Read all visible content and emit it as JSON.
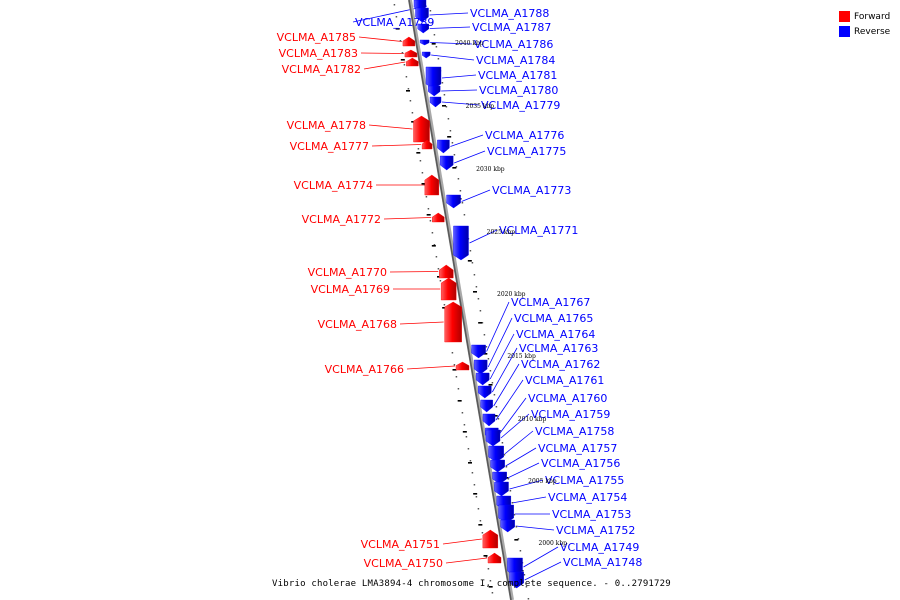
{
  "legend": {
    "forward_label": "Forward",
    "reverse_label": "Reverse",
    "forward_color": "#ff0000",
    "reverse_color": "#0000ff"
  },
  "caption": "Vibrio cholerae LMA3894-4 chromosome I, complete sequence. - 0..2791729",
  "ticks": [
    "2040 kbp",
    "2035 kbp",
    "2030 kbp",
    "2025 kbp",
    "2020 kbp",
    "2015 kbp",
    "2010 kbp",
    "2005 kbp",
    "2000 kbp"
  ],
  "genes": [
    {
      "name": "VCLMA_A1789",
      "strand": "reverse"
    },
    {
      "name": "VCLMA_A1788",
      "strand": "reverse"
    },
    {
      "name": "VCLMA_A1787",
      "strand": "reverse"
    },
    {
      "name": "VCLMA_A1786",
      "strand": "reverse"
    },
    {
      "name": "VCLMA_A1785",
      "strand": "forward"
    },
    {
      "name": "VCLMA_A1784",
      "strand": "reverse"
    },
    {
      "name": "VCLMA_A1783",
      "strand": "forward"
    },
    {
      "name": "VCLMA_A1782",
      "strand": "forward"
    },
    {
      "name": "VCLMA_A1781",
      "strand": "reverse"
    },
    {
      "name": "VCLMA_A1780",
      "strand": "reverse"
    },
    {
      "name": "VCLMA_A1779",
      "strand": "reverse"
    },
    {
      "name": "VCLMA_A1778",
      "strand": "forward"
    },
    {
      "name": "VCLMA_A1777",
      "strand": "forward"
    },
    {
      "name": "VCLMA_A1776",
      "strand": "reverse"
    },
    {
      "name": "VCLMA_A1775",
      "strand": "reverse"
    },
    {
      "name": "VCLMA_A1774",
      "strand": "forward"
    },
    {
      "name": "VCLMA_A1773",
      "strand": "reverse"
    },
    {
      "name": "VCLMA_A1772",
      "strand": "forward"
    },
    {
      "name": "VCLMA_A1771",
      "strand": "reverse"
    },
    {
      "name": "VCLMA_A1770",
      "strand": "forward"
    },
    {
      "name": "VCLMA_A1769",
      "strand": "forward"
    },
    {
      "name": "VCLMA_A1768",
      "strand": "forward"
    },
    {
      "name": "VCLMA_A1767",
      "strand": "reverse"
    },
    {
      "name": "VCLMA_A1766",
      "strand": "forward"
    },
    {
      "name": "VCLMA_A1765",
      "strand": "reverse"
    },
    {
      "name": "VCLMA_A1764",
      "strand": "reverse"
    },
    {
      "name": "VCLMA_A1763",
      "strand": "reverse"
    },
    {
      "name": "VCLMA_A1762",
      "strand": "reverse"
    },
    {
      "name": "VCLMA_A1761",
      "strand": "reverse"
    },
    {
      "name": "VCLMA_A1760",
      "strand": "reverse"
    },
    {
      "name": "VCLMA_A1759",
      "strand": "reverse"
    },
    {
      "name": "VCLMA_A1758",
      "strand": "reverse"
    },
    {
      "name": "VCLMA_A1757",
      "strand": "reverse"
    },
    {
      "name": "VCLMA_A1756",
      "strand": "reverse"
    },
    {
      "name": "VCLMA_A1755",
      "strand": "reverse"
    },
    {
      "name": "VCLMA_A1754",
      "strand": "reverse"
    },
    {
      "name": "VCLMA_A1753",
      "strand": "reverse"
    },
    {
      "name": "VCLMA_A1752",
      "strand": "reverse"
    },
    {
      "name": "VCLMA_A1751",
      "strand": "forward"
    },
    {
      "name": "VCLMA_A1750",
      "strand": "forward"
    },
    {
      "name": "VCLMA_A1749",
      "strand": "reverse"
    },
    {
      "name": "VCLMA_A1748",
      "strand": "reverse"
    }
  ]
}
